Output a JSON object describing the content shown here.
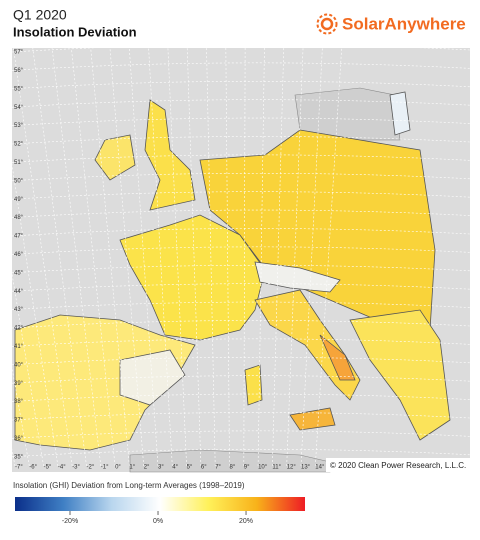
{
  "header": {
    "period": "Q1 2020",
    "title": "Insolation Deviation",
    "brand": "SolarAnywhere"
  },
  "map": {
    "latitude_labels": [
      "57°",
      "56°",
      "55°",
      "54°",
      "53°",
      "52°",
      "51°",
      "50°",
      "49°",
      "48°",
      "47°",
      "46°",
      "45°",
      "44°",
      "43°",
      "42°",
      "41°",
      "40°",
      "39°",
      "38°",
      "37°",
      "36°",
      "35°"
    ],
    "longitude_labels": [
      "-7°",
      "-6°",
      "-5°",
      "-4°",
      "-3°",
      "-2°",
      "-1°",
      "0°",
      "1°",
      "2°",
      "3°",
      "4°",
      "5°",
      "6°",
      "7°",
      "8°",
      "9°",
      "10°",
      "11°",
      "12°",
      "13°",
      "14°"
    ],
    "copyright": "© 2020 Clean Power Research, L.L.C."
  },
  "legend": {
    "title": "Insolation (GHI) Deviation from Long-term Averages (1998–2019)",
    "range": [
      -32.5,
      33.4
    ],
    "colors": [
      "#0b2f8a",
      "#3f7fc4",
      "#b9d6ee",
      "#ffffff",
      "#fff15a",
      "#f8b21a",
      "#ee1c25"
    ],
    "ticks": [
      {
        "value": -20,
        "label": "-20%"
      },
      {
        "value": 0,
        "label": "0%"
      },
      {
        "value": 20,
        "label": "20%"
      }
    ]
  }
}
